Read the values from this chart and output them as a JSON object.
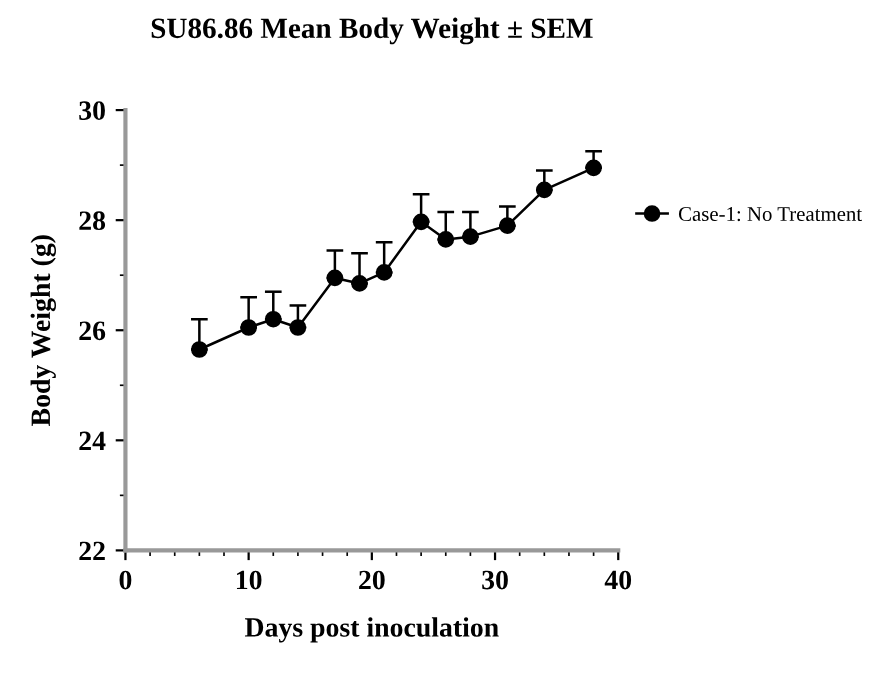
{
  "chart_data": {
    "type": "line",
    "title": "SU86.86 Mean Body Weight ± SEM",
    "xlabel": "Days post inoculation",
    "ylabel": "Body Weight (g)",
    "x": [
      6,
      10,
      12,
      14,
      17,
      19,
      21,
      24,
      26,
      28,
      31,
      34,
      38
    ],
    "series": [
      {
        "name": "Case-1: No Treatment",
        "color": "#000000",
        "values": [
          25.65,
          26.05,
          26.2,
          26.05,
          26.95,
          26.85,
          27.05,
          27.97,
          27.65,
          27.7,
          27.9,
          28.55,
          28.95
        ],
        "errors": [
          [
            25.65,
            26.2
          ],
          [
            26.05,
            26.6
          ],
          [
            26.2,
            26.7
          ],
          [
            26.05,
            26.45
          ],
          [
            26.95,
            27.45
          ],
          [
            26.85,
            27.4
          ],
          [
            27.05,
            27.6
          ],
          [
            27.97,
            28.47
          ],
          [
            27.65,
            28.15
          ],
          [
            27.7,
            28.15
          ],
          [
            27.9,
            28.25
          ],
          [
            28.55,
            28.9
          ],
          [
            28.95,
            29.25
          ]
        ]
      }
    ],
    "xlim": [
      0,
      40
    ],
    "xticks": [
      0,
      10,
      20,
      30,
      40
    ],
    "ylim": [
      22,
      30
    ],
    "yticks": [
      22,
      24,
      26,
      28,
      30
    ],
    "marker": "circle",
    "line_style": "solid",
    "grid": false,
    "legend": "right"
  }
}
